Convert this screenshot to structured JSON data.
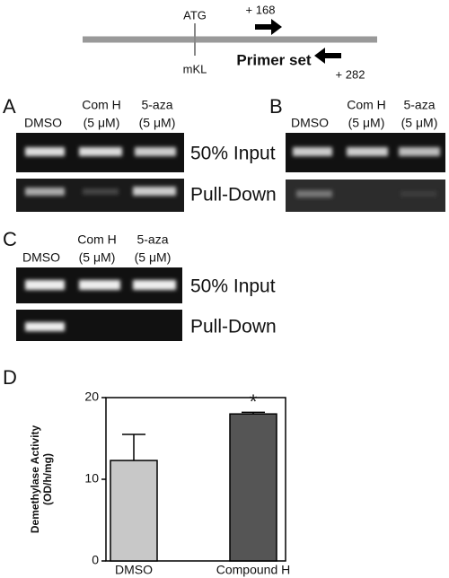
{
  "schematic": {
    "atg": "ATG",
    "pos_fwd": "+ 168",
    "mkl": "mKL",
    "primer_set": "Primer set",
    "pos_rev": "+ 282"
  },
  "panels": {
    "A": {
      "label": "A",
      "lanes": [
        [
          "DMSO"
        ],
        [
          "Com H",
          "(5 μM)"
        ],
        [
          "5-aza",
          "(5 μM)"
        ]
      ],
      "rows": [
        "50% Input",
        "Pull-Down"
      ]
    },
    "B": {
      "label": "B",
      "lanes": [
        [
          "DMSO"
        ],
        [
          "Com H",
          "(5 μM)"
        ],
        [
          "5-aza",
          "(5 μM)"
        ]
      ]
    },
    "C": {
      "label": "C",
      "lanes": [
        [
          "DMSO"
        ],
        [
          "Com H",
          "(5 μM)"
        ],
        [
          "5-aza",
          "(5 μM)"
        ]
      ],
      "rows": [
        "50% Input",
        "Pull-Down"
      ]
    }
  },
  "chart_data": {
    "type": "bar",
    "panel_label": "D",
    "categories": [
      "DMSO",
      "Compound H"
    ],
    "values": [
      12.3,
      18
    ],
    "errors": [
      3.2,
      0.2
    ],
    "colors": [
      "#c8c8c8",
      "#555555"
    ],
    "ylim": [
      0,
      20
    ],
    "yticks": [
      0,
      10,
      20
    ],
    "ylabel": [
      "Demethylase Activity",
      "(OD/h/mg)"
    ],
    "annotations": [
      {
        "category": 1,
        "text": "*"
      }
    ]
  }
}
